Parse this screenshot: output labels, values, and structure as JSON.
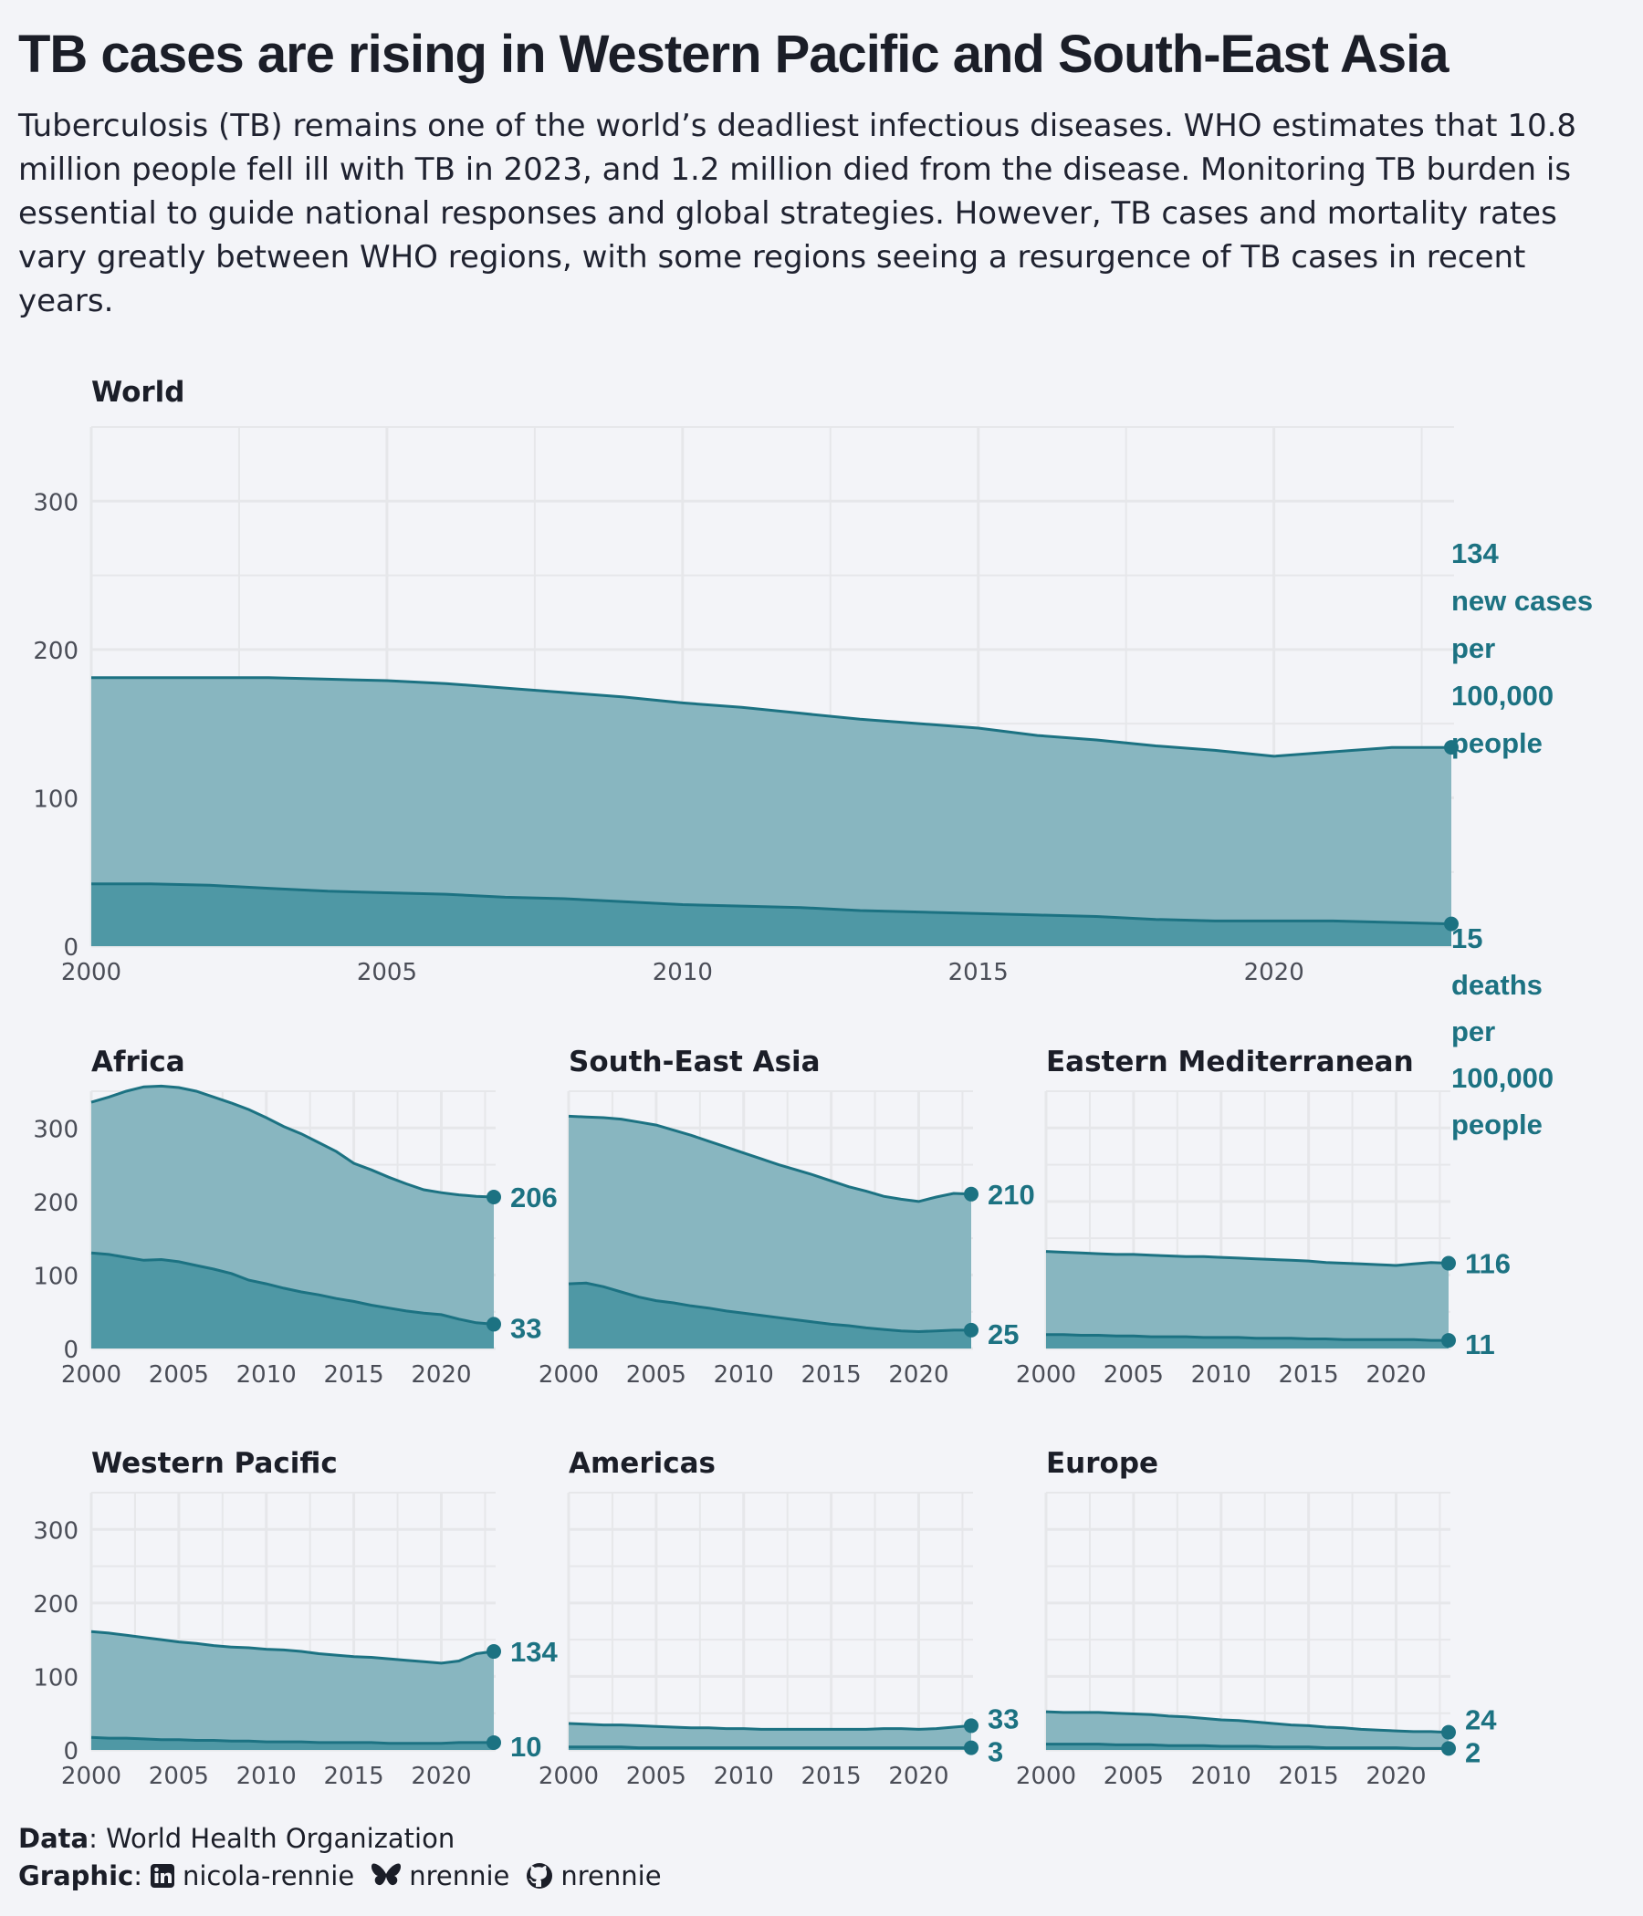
{
  "title": "TB cases are rising in Western Pacific and South-East Asia",
  "subtitle": "Tuberculosis (TB) remains one of the world’s deadliest infectious diseases. WHO estimates that 10.8 million people fell ill with TB in 2023, and 1.2 million died from the disease. Monitoring TB burden is essential to guide national responses and global strategies. However, TB cases and mortality rates vary greatly between WHO regions, with some regions seeing a resurgence of TB cases in recent years.",
  "colors": {
    "background": "#f3f4f8",
    "cases_fill": "#88b6c0",
    "deaths_fill": "#4f98a5",
    "line": "#1c7282",
    "label": "#1c7282"
  },
  "caption": {
    "data_label": "Data",
    "data_value": ": World Health Organization",
    "graphic_label": "Graphic",
    "colon": ":",
    "linkedin": "nicola-rennie",
    "bluesky": "nrennie",
    "github": "nrennie",
    "icons": [
      "linkedin-icon",
      "bluesky-icon",
      "github-icon"
    ]
  },
  "chart_data": [
    {
      "type": "area",
      "title": "World",
      "x": [
        2000,
        2001,
        2002,
        2003,
        2004,
        2005,
        2006,
        2007,
        2008,
        2009,
        2010,
        2011,
        2012,
        2013,
        2014,
        2015,
        2016,
        2017,
        2018,
        2019,
        2020,
        2021,
        2022,
        2023
      ],
      "series": [
        {
          "name": "new cases per 100,000 people",
          "values": [
            181,
            181,
            181,
            181,
            180,
            179,
            177,
            174,
            171,
            168,
            164,
            161,
            157,
            153,
            150,
            147,
            142,
            139,
            135,
            132,
            128,
            131,
            134,
            134
          ]
        },
        {
          "name": "deaths per 100,000 people",
          "values": [
            42,
            42,
            41,
            39,
            37,
            36,
            35,
            33,
            32,
            30,
            28,
            27,
            26,
            24,
            23,
            22,
            21,
            20,
            18,
            17,
            17,
            17,
            16,
            15
          ]
        }
      ],
      "end_labels": {
        "cases": "134",
        "deaths": "15"
      },
      "cases_label_lines": [
        "134",
        "new cases",
        "per",
        "100,000",
        "people"
      ],
      "deaths_label_lines": [
        "15",
        "deaths",
        "per",
        "100,000",
        "people"
      ],
      "xticks": [
        "2000",
        "2005",
        "2010",
        "2015",
        "2020"
      ],
      "yticks": [
        "0",
        "100",
        "200",
        "300"
      ],
      "xlim": [
        2000,
        2023
      ],
      "ylim": [
        0,
        350
      ],
      "grid": true
    },
    {
      "type": "area",
      "title": "Africa",
      "x": [
        2000,
        2001,
        2002,
        2003,
        2004,
        2005,
        2006,
        2007,
        2008,
        2009,
        2010,
        2011,
        2012,
        2013,
        2014,
        2015,
        2016,
        2017,
        2018,
        2019,
        2020,
        2021,
        2022,
        2023
      ],
      "series": [
        {
          "name": "new cases per 100,000 people",
          "values": [
            335,
            342,
            350,
            356,
            357,
            355,
            350,
            342,
            334,
            325,
            314,
            302,
            292,
            280,
            268,
            252,
            243,
            233,
            224,
            216,
            212,
            209,
            207,
            206
          ]
        },
        {
          "name": "deaths per 100,000 people",
          "values": [
            130,
            128,
            124,
            120,
            121,
            118,
            113,
            108,
            102,
            93,
            88,
            82,
            77,
            73,
            68,
            64,
            59,
            55,
            51,
            48,
            46,
            40,
            35,
            33
          ]
        }
      ],
      "end_labels": {
        "cases": "206",
        "deaths": "33"
      },
      "xticks": [
        "2000",
        "2005",
        "2010",
        "2015",
        "2020"
      ],
      "yticks": [
        "0",
        "100",
        "200",
        "300"
      ],
      "xlim": [
        2000,
        2023
      ],
      "ylim": [
        0,
        350
      ],
      "grid": true
    },
    {
      "type": "area",
      "title": "South-East Asia",
      "x": [
        2000,
        2001,
        2002,
        2003,
        2004,
        2005,
        2006,
        2007,
        2008,
        2009,
        2010,
        2011,
        2012,
        2013,
        2014,
        2015,
        2016,
        2017,
        2018,
        2019,
        2020,
        2021,
        2022,
        2023
      ],
      "series": [
        {
          "name": "new cases per 100,000 people",
          "values": [
            316,
            315,
            314,
            312,
            308,
            304,
            297,
            290,
            282,
            274,
            266,
            258,
            250,
            243,
            236,
            228,
            220,
            214,
            207,
            203,
            200,
            206,
            211,
            210
          ]
        },
        {
          "name": "deaths per 100,000 people",
          "values": [
            88,
            89,
            84,
            77,
            70,
            65,
            62,
            58,
            55,
            51,
            48,
            45,
            42,
            39,
            36,
            33,
            31,
            28,
            26,
            24,
            23,
            24,
            25,
            25
          ]
        }
      ],
      "end_labels": {
        "cases": "210",
        "deaths": "25"
      },
      "xticks": [
        "2000",
        "2005",
        "2010",
        "2015",
        "2020"
      ],
      "yticks": [],
      "xlim": [
        2000,
        2023
      ],
      "ylim": [
        0,
        350
      ],
      "grid": true
    },
    {
      "type": "area",
      "title": "Eastern Mediterranean",
      "x": [
        2000,
        2001,
        2002,
        2003,
        2004,
        2005,
        2006,
        2007,
        2008,
        2009,
        2010,
        2011,
        2012,
        2013,
        2014,
        2015,
        2016,
        2017,
        2018,
        2019,
        2020,
        2021,
        2022,
        2023
      ],
      "series": [
        {
          "name": "new cases per 100,000 people",
          "values": [
            132,
            131,
            130,
            129,
            128,
            128,
            127,
            126,
            125,
            125,
            124,
            123,
            122,
            121,
            120,
            119,
            117,
            116,
            115,
            114,
            113,
            115,
            117,
            116
          ]
        },
        {
          "name": "deaths per 100,000 people",
          "values": [
            19,
            19,
            18,
            18,
            17,
            17,
            16,
            16,
            16,
            15,
            15,
            15,
            14,
            14,
            14,
            13,
            13,
            12,
            12,
            12,
            12,
            12,
            11,
            11
          ]
        }
      ],
      "end_labels": {
        "cases": "116",
        "deaths": "11"
      },
      "xticks": [
        "2000",
        "2005",
        "2010",
        "2015",
        "2020"
      ],
      "yticks": [],
      "xlim": [
        2000,
        2023
      ],
      "ylim": [
        0,
        350
      ],
      "grid": true
    },
    {
      "type": "area",
      "title": "Western Pacific",
      "x": [
        2000,
        2001,
        2002,
        2003,
        2004,
        2005,
        2006,
        2007,
        2008,
        2009,
        2010,
        2011,
        2012,
        2013,
        2014,
        2015,
        2016,
        2017,
        2018,
        2019,
        2020,
        2021,
        2022,
        2023
      ],
      "series": [
        {
          "name": "new cases per 100,000 people",
          "values": [
            161,
            159,
            156,
            153,
            150,
            147,
            145,
            142,
            140,
            139,
            137,
            136,
            134,
            131,
            129,
            127,
            126,
            124,
            122,
            120,
            118,
            121,
            131,
            134
          ]
        },
        {
          "name": "deaths per 100,000 people",
          "values": [
            17,
            16,
            16,
            15,
            14,
            14,
            13,
            13,
            12,
            12,
            11,
            11,
            11,
            10,
            10,
            10,
            10,
            9,
            9,
            9,
            9,
            10,
            10,
            10
          ]
        }
      ],
      "end_labels": {
        "cases": "134",
        "deaths": "10"
      },
      "xticks": [
        "2000",
        "2005",
        "2010",
        "2015",
        "2020"
      ],
      "yticks": [
        "0",
        "100",
        "200",
        "300"
      ],
      "xlim": [
        2000,
        2023
      ],
      "ylim": [
        0,
        350
      ],
      "grid": true
    },
    {
      "type": "area",
      "title": "Americas",
      "x": [
        2000,
        2001,
        2002,
        2003,
        2004,
        2005,
        2006,
        2007,
        2008,
        2009,
        2010,
        2011,
        2012,
        2013,
        2014,
        2015,
        2016,
        2017,
        2018,
        2019,
        2020,
        2021,
        2022,
        2023
      ],
      "series": [
        {
          "name": "new cases per 100,000 people",
          "values": [
            36,
            35,
            34,
            34,
            33,
            32,
            31,
            30,
            30,
            29,
            29,
            28,
            28,
            28,
            28,
            28,
            28,
            28,
            29,
            29,
            28,
            29,
            31,
            33
          ]
        },
        {
          "name": "deaths per 100,000 people",
          "values": [
            4,
            4,
            4,
            4,
            3,
            3,
            3,
            3,
            3,
            3,
            3,
            3,
            3,
            3,
            3,
            3,
            3,
            3,
            3,
            3,
            3,
            3,
            3,
            3
          ]
        }
      ],
      "end_labels": {
        "cases": "33",
        "deaths": "3"
      },
      "xticks": [
        "2000",
        "2005",
        "2010",
        "2015",
        "2020"
      ],
      "yticks": [],
      "xlim": [
        2000,
        2023
      ],
      "ylim": [
        0,
        350
      ],
      "grid": true
    },
    {
      "type": "area",
      "title": "Europe",
      "x": [
        2000,
        2001,
        2002,
        2003,
        2004,
        2005,
        2006,
        2007,
        2008,
        2009,
        2010,
        2011,
        2012,
        2013,
        2014,
        2015,
        2016,
        2017,
        2018,
        2019,
        2020,
        2021,
        2022,
        2023
      ],
      "series": [
        {
          "name": "new cases per 100,000 people",
          "values": [
            52,
            51,
            51,
            51,
            50,
            49,
            48,
            46,
            45,
            43,
            41,
            40,
            38,
            36,
            34,
            33,
            31,
            30,
            28,
            27,
            26,
            25,
            25,
            24
          ]
        },
        {
          "name": "deaths per 100,000 people",
          "values": [
            8,
            8,
            8,
            8,
            7,
            7,
            7,
            6,
            6,
            6,
            5,
            5,
            5,
            4,
            4,
            4,
            3,
            3,
            3,
            3,
            3,
            2,
            2,
            2
          ]
        }
      ],
      "end_labels": {
        "cases": "24",
        "deaths": "2"
      },
      "xticks": [
        "2000",
        "2005",
        "2010",
        "2015",
        "2020"
      ],
      "yticks": [],
      "xlim": [
        2000,
        2023
      ],
      "ylim": [
        0,
        350
      ],
      "grid": true
    }
  ]
}
